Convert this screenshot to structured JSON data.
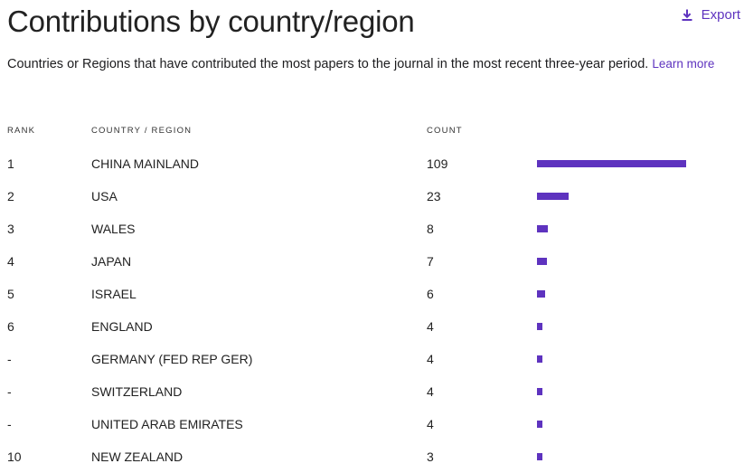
{
  "header": {
    "title": "Contributions by country/region",
    "export_label": "Export"
  },
  "description": {
    "text": "Countries or Regions that have contributed the most papers to the journal in the most recent three-year period.",
    "link_label": "Learn more"
  },
  "table": {
    "columns": {
      "rank": "RANK",
      "country": "COUNTRY / REGION",
      "count": "COUNT"
    },
    "bar_color": "#5e33bf",
    "max_count": 109,
    "rows": [
      {
        "rank": "1",
        "country": "CHINA MAINLAND",
        "count": 109
      },
      {
        "rank": "2",
        "country": "USA",
        "count": 23
      },
      {
        "rank": "3",
        "country": "WALES",
        "count": 8
      },
      {
        "rank": "4",
        "country": "JAPAN",
        "count": 7
      },
      {
        "rank": "5",
        "country": "ISRAEL",
        "count": 6
      },
      {
        "rank": "6",
        "country": "ENGLAND",
        "count": 4
      },
      {
        "rank": "-",
        "country": "GERMANY (FED REP GER)",
        "count": 4
      },
      {
        "rank": "-",
        "country": "SWITZERLAND",
        "count": 4
      },
      {
        "rank": "-",
        "country": "UNITED ARAB EMIRATES",
        "count": 4
      },
      {
        "rank": "10",
        "country": "NEW ZEALAND",
        "count": 3
      }
    ]
  }
}
